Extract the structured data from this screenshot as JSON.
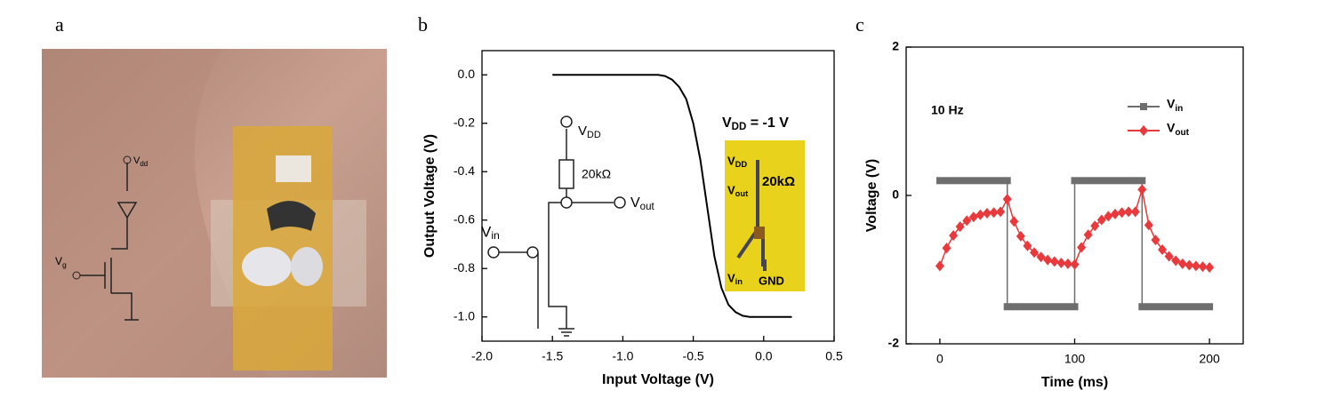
{
  "panel_labels": [
    "a",
    "b",
    "c"
  ],
  "photo": {
    "labels": [
      "Vdd",
      "Vg"
    ]
  },
  "chart_data": [
    {
      "type": "line",
      "xlabel": "Input Voltage (V)",
      "ylabel": "Output Voltage (V)",
      "x": [
        -1.5,
        -1.0,
        -0.75,
        -0.7,
        -0.65,
        -0.6,
        -0.55,
        -0.5,
        -0.45,
        -0.4,
        -0.35,
        -0.3,
        -0.25,
        -0.2,
        -0.15,
        -0.1,
        0,
        0.2
      ],
      "series": [
        {
          "color": "#000000",
          "values": [
            0,
            0,
            0,
            -0.005,
            -0.02,
            -0.05,
            -0.1,
            -0.2,
            -0.35,
            -0.55,
            -0.75,
            -0.88,
            -0.95,
            -0.98,
            -0.995,
            -1,
            -1,
            -1
          ]
        }
      ],
      "xlim": [
        -2,
        0.5
      ],
      "xticks": [
        {
          "value": -2,
          "label": "-2.0"
        },
        -1.5,
        {
          "value": -1,
          "label": "-1.0"
        },
        -0.5,
        {
          "value": 0,
          "label": "0.0"
        },
        0.5
      ],
      "ylim": [
        -1.1,
        0.1
      ],
      "yticks": [
        {
          "value": 0,
          "label": "0.0"
        },
        -0.2,
        -0.4,
        -0.6,
        -0.8,
        {
          "value": -1,
          "label": "-1.0"
        }
      ],
      "annotations": [
        "VDD = -1 V"
      ],
      "circuit_labels": [
        "VDD",
        "20kΩ",
        "Vout",
        "Vin"
      ],
      "inset_labels": [
        "VDD",
        "Vout",
        "20kΩ",
        "Vin",
        "GND"
      ]
    },
    {
      "type": "line",
      "xlabel": "Time (ms)",
      "ylabel": "Voltage (V)",
      "annotations": [
        "10 Hz"
      ],
      "legend": "upper right",
      "series": [
        {
          "name": "Vin",
          "color": "#6e6e6e",
          "marker": "square",
          "x": [
            0,
            5,
            10,
            15,
            20,
            25,
            30,
            35,
            40,
            45,
            50,
            50,
            55,
            60,
            65,
            70,
            75,
            80,
            85,
            90,
            95,
            100,
            100,
            105,
            110,
            115,
            120,
            125,
            130,
            135,
            140,
            145,
            150,
            150,
            155,
            160,
            165,
            170,
            175,
            180,
            185,
            190,
            195,
            200
          ],
          "values": [
            0.2,
            0.2,
            0.2,
            0.2,
            0.2,
            0.2,
            0.2,
            0.2,
            0.2,
            0.2,
            0.2,
            -1.5,
            -1.5,
            -1.5,
            -1.5,
            -1.5,
            -1.5,
            -1.5,
            -1.5,
            -1.5,
            -1.5,
            -1.5,
            0.2,
            0.2,
            0.2,
            0.2,
            0.2,
            0.2,
            0.2,
            0.2,
            0.2,
            0.2,
            0.2,
            -1.5,
            -1.5,
            -1.5,
            -1.5,
            -1.5,
            -1.5,
            -1.5,
            -1.5,
            -1.5,
            -1.5,
            -1.5
          ]
        },
        {
          "name": "Vout",
          "color": "#e8393c",
          "marker": "diamond",
          "x": [
            0,
            5,
            10,
            15,
            20,
            25,
            30,
            35,
            40,
            45,
            50,
            55,
            60,
            65,
            70,
            75,
            80,
            85,
            90,
            95,
            100,
            105,
            110,
            115,
            120,
            125,
            130,
            135,
            140,
            145,
            150,
            155,
            160,
            165,
            170,
            175,
            180,
            185,
            190,
            195,
            200
          ],
          "values": [
            -0.95,
            -0.71,
            -0.54,
            -0.42,
            -0.34,
            -0.29,
            -0.26,
            -0.24,
            -0.23,
            -0.22,
            -0.05,
            -0.35,
            -0.55,
            -0.68,
            -0.77,
            -0.83,
            -0.87,
            -0.89,
            -0.91,
            -0.92,
            -0.93,
            -0.7,
            -0.53,
            -0.41,
            -0.33,
            -0.28,
            -0.25,
            -0.23,
            -0.22,
            -0.22,
            0.08,
            -0.4,
            -0.6,
            -0.73,
            -0.82,
            -0.88,
            -0.92,
            -0.94,
            -0.95,
            -0.96,
            -0.97
          ]
        }
      ],
      "xlim": [
        -25,
        225
      ],
      "xticks": [
        0,
        100,
        200
      ],
      "ylim": [
        -2,
        2
      ],
      "yticks": [
        -2,
        0,
        2
      ]
    }
  ]
}
